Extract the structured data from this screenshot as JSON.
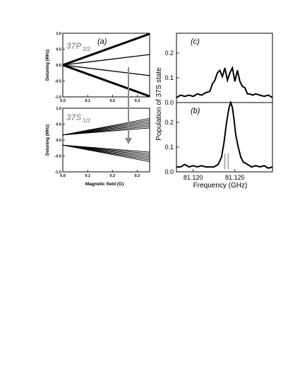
{
  "chart_data": [
    {
      "panel": "a",
      "type": "line",
      "label": "(a)",
      "state_label": {
        "main": "37P",
        "sub": "3/2"
      },
      "ylabel": "Detuning (MHz)",
      "xlim": [
        0,
        0.35
      ],
      "ylim": [
        -1.0,
        1.0
      ],
      "x_ticks": [
        "0.0",
        "0.1",
        "0.2",
        "0.3"
      ],
      "y_ticks": [
        "1.0",
        "0.5",
        "0.0",
        "-0.5",
        "-1.0"
      ],
      "series": [
        {
          "x": [
            0,
            0.35
          ],
          "y": [
            0,
            0.98
          ],
          "bold": true
        },
        {
          "x": [
            0,
            0.35
          ],
          "y": [
            0,
            0.33
          ],
          "bold": false
        },
        {
          "x": [
            0,
            0.35
          ],
          "y": [
            0,
            -0.33
          ],
          "bold": false
        },
        {
          "x": [
            0,
            0.35
          ],
          "y": [
            0,
            -0.98
          ],
          "bold": true
        }
      ]
    },
    {
      "panel": "a-lower",
      "type": "line",
      "state_label": {
        "main": "37S",
        "sub": "1/2"
      },
      "ylabel": "Detuning (MHz)",
      "xlabel": "Magnetic field (G)",
      "xlim": [
        0,
        0.35
      ],
      "ylim": [
        -1.0,
        1.0
      ],
      "x_ticks": [
        "0.0",
        "0.1",
        "0.2",
        "0.3"
      ],
      "y_ticks": [
        "1.0",
        "0.5",
        "0.0",
        "-0.5",
        "-1.0"
      ],
      "upper_fan": {
        "y0": 0.16,
        "y_end": [
          0.38,
          0.43,
          0.48,
          0.53,
          0.58,
          0.63,
          0.68
        ]
      },
      "lower_fan": {
        "y0": -0.16,
        "y_end": [
          -0.38,
          -0.43,
          -0.48,
          -0.53,
          -0.58,
          -0.63,
          -0.68
        ]
      }
    },
    {
      "panel": "c",
      "type": "line",
      "label": "(c)",
      "ylabel": "Population of 37S state",
      "xlim": [
        81.118,
        81.1295
      ],
      "ylim": [
        0,
        0.28
      ],
      "y_ticks": [
        "0.0",
        "0.1",
        "0.2"
      ],
      "x": [
        81.118,
        81.1185,
        81.119,
        81.1195,
        81.12,
        81.1205,
        81.121,
        81.1215,
        81.122,
        81.1223,
        81.1226,
        81.1229,
        81.1232,
        81.1235,
        81.1238,
        81.1241,
        81.1244,
        81.1247,
        81.125,
        81.1253,
        81.1256,
        81.1259,
        81.1262,
        81.1265,
        81.1268,
        81.1271,
        81.1275,
        81.128,
        81.1285,
        81.129,
        81.1295
      ],
      "y": [
        0.02,
        0.03,
        0.025,
        0.03,
        0.025,
        0.035,
        0.03,
        0.04,
        0.045,
        0.075,
        0.09,
        0.12,
        0.13,
        0.105,
        0.14,
        0.09,
        0.12,
        0.14,
        0.085,
        0.13,
        0.085,
        0.065,
        0.06,
        0.035,
        0.035,
        0.03,
        0.035,
        0.03,
        0.025,
        0.03,
        0.02
      ]
    },
    {
      "panel": "b",
      "type": "line",
      "label": "(b)",
      "xlabel": "Frequency (GHz)",
      "xlim": [
        81.118,
        81.1295
      ],
      "ylim": [
        0,
        0.28
      ],
      "x_ticks": [
        "81.120",
        "81.125"
      ],
      "x_tick_values": [
        81.12,
        81.125
      ],
      "y_ticks": [
        "0.0",
        "0.1",
        "0.2"
      ],
      "x": [
        81.118,
        81.1185,
        81.119,
        81.1195,
        81.12,
        81.1205,
        81.121,
        81.1215,
        81.122,
        81.1225,
        81.123,
        81.1234,
        81.1237,
        81.124,
        81.1243,
        81.1245,
        81.1247,
        81.1249,
        81.1251,
        81.1254,
        81.1257,
        81.126,
        81.1265,
        81.127,
        81.1275,
        81.128,
        81.1285,
        81.129,
        81.1295
      ],
      "y": [
        0.02,
        0.02,
        0.03,
        0.02,
        0.025,
        0.02,
        0.025,
        0.02,
        0.02,
        0.02,
        0.03,
        0.06,
        0.12,
        0.2,
        0.26,
        0.28,
        0.26,
        0.21,
        0.15,
        0.1,
        0.06,
        0.04,
        0.03,
        0.02,
        0.025,
        0.02,
        0.025,
        0.015,
        0.02
      ],
      "markers_x": [
        81.1238,
        81.1242
      ]
    }
  ]
}
